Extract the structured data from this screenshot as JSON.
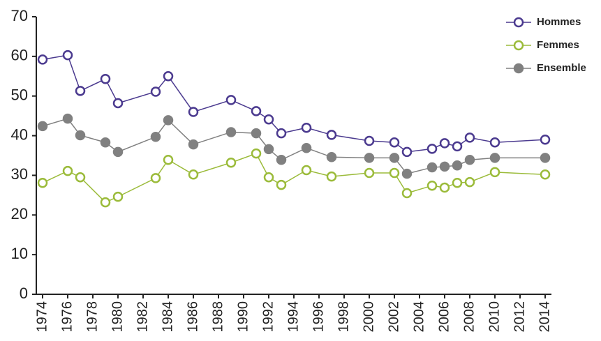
{
  "chart_data": {
    "type": "line",
    "x": [
      1974,
      1976,
      1977,
      1979,
      1980,
      1983,
      1984,
      1986,
      1989,
      1991,
      1992,
      1993,
      1995,
      1997,
      2000,
      2002,
      2003,
      2005,
      2006,
      2007,
      2008,
      2010,
      2014
    ],
    "series": [
      {
        "name": "Hommes",
        "color": "#4b3a8f",
        "marker": "open",
        "values": [
          59.2,
          60.3,
          51.3,
          54.3,
          48.2,
          51.1,
          55,
          46,
          49,
          46.2,
          44.1,
          40.6,
          42,
          40.2,
          38.7,
          38.3,
          35.9,
          36.7,
          38.1,
          37.3,
          39.5,
          38.3,
          39
        ]
      },
      {
        "name": "Femmes",
        "color": "#9bbb3a",
        "marker": "open",
        "values": [
          28.1,
          31.1,
          29.5,
          23.2,
          24.6,
          29.3,
          33.9,
          30.2,
          33.2,
          35.5,
          29.5,
          27.6,
          31.3,
          29.7,
          30.6,
          30.6,
          25.5,
          27.4,
          26.9,
          28.1,
          28.3,
          30.8,
          30.2
        ]
      },
      {
        "name": "Ensemble",
        "color": "#808080",
        "marker": "filled",
        "values": [
          42.4,
          44.3,
          40.1,
          38.3,
          35.9,
          39.7,
          43.9,
          37.8,
          40.9,
          40.6,
          36.6,
          33.9,
          36.9,
          34.6,
          34.4,
          34.4,
          30.4,
          32,
          32.2,
          32.5,
          33.9,
          34.4,
          34.4
        ]
      }
    ],
    "xlim": [
      1973.5,
      2014.5
    ],
    "xticks": [
      1974,
      1976,
      1978,
      1980,
      1982,
      1984,
      1986,
      1988,
      1990,
      1992,
      1994,
      1996,
      1998,
      2000,
      2002,
      2004,
      2006,
      2008,
      2010,
      2012,
      2014
    ],
    "ylim": [
      0,
      70
    ],
    "yticks": [
      0,
      10,
      20,
      30,
      40,
      50,
      60,
      70
    ],
    "legend": "top-right"
  }
}
